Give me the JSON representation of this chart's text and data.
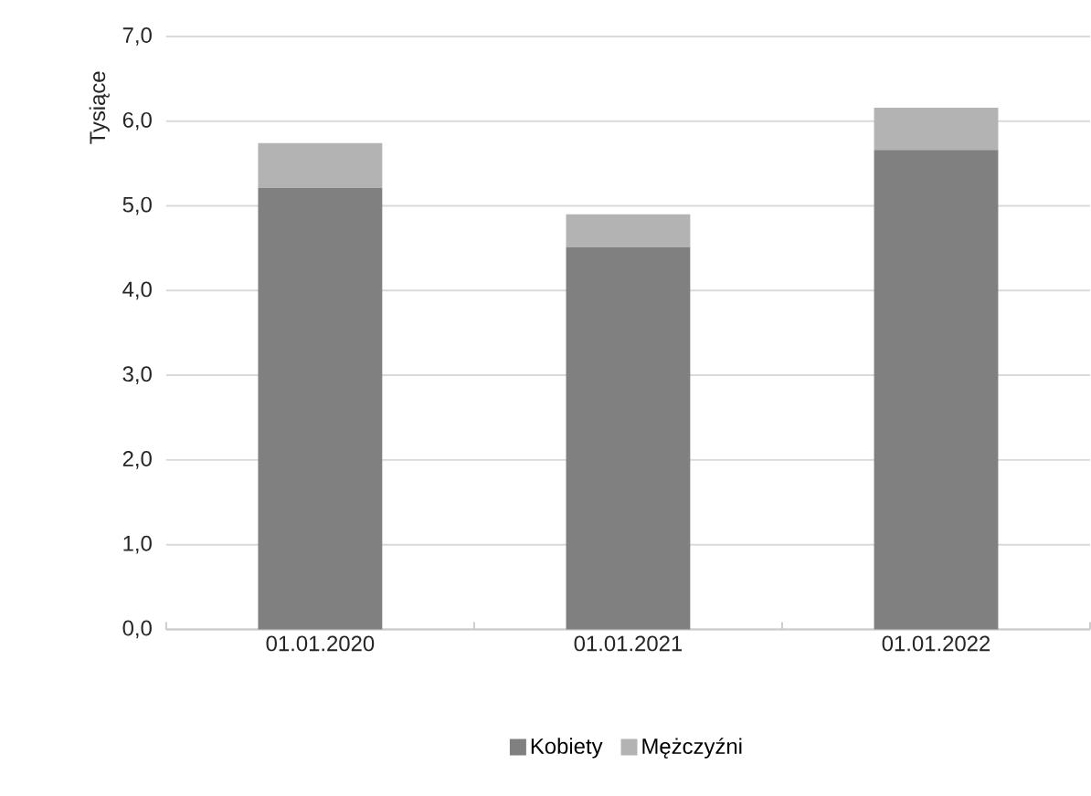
{
  "chart_data": {
    "type": "bar",
    "stacked": true,
    "ylabel": "Tysiące",
    "categories": [
      "01.01.2020",
      "01.01.2021",
      "01.01.2022"
    ],
    "series": [
      {
        "name": "Kobiety",
        "color": "#808080",
        "values": [
          5.21,
          4.51,
          5.66
        ]
      },
      {
        "name": "Mężczyźni",
        "color": "#b3b3b3",
        "values": [
          0.53,
          0.39,
          0.5
        ]
      }
    ],
    "ylim": [
      0,
      7
    ],
    "yticks": [
      {
        "value": 0,
        "label": "0,0"
      },
      {
        "value": 1,
        "label": "1,0"
      },
      {
        "value": 2,
        "label": "2,0"
      },
      {
        "value": 3,
        "label": "3,0"
      },
      {
        "value": 4,
        "label": "4,0"
      },
      {
        "value": 5,
        "label": "5,0"
      },
      {
        "value": 6,
        "label": "6,0"
      },
      {
        "value": 7,
        "label": "7,0"
      }
    ],
    "grid": "y",
    "legend": "bottom"
  }
}
